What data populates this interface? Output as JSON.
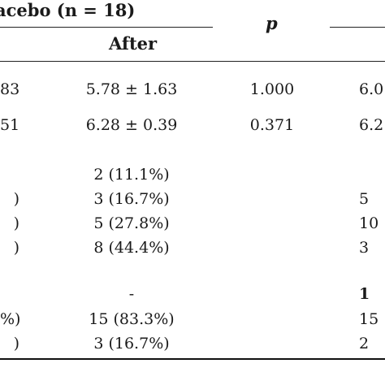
{
  "header": {
    "group_label": "acebo (n = 18)",
    "p_label": "p",
    "after_label": "After"
  },
  "rows": [
    {
      "before": "83",
      "after": "5.78 ± 1.63",
      "p": "1.000",
      "next": "6.0"
    },
    {
      "before": "51",
      "after": "6.28 ± 0.39",
      "p": "0.371",
      "next": "6.2"
    },
    {
      "before": "",
      "after": "2 (11.1%)",
      "p": "",
      "next": ""
    },
    {
      "before": ")",
      "after": "3 (16.7%)",
      "p": "",
      "next": "5"
    },
    {
      "before": ")",
      "after": "5 (27.8%)",
      "p": "",
      "next": "10"
    },
    {
      "before": ")",
      "after": "8 (44.4%)",
      "p": "",
      "next": "3"
    },
    {
      "before": "",
      "after": "-",
      "p": "",
      "next": "1"
    },
    {
      "before": "%)",
      "after": "15 (83.3%)",
      "p": "",
      "next": "15"
    },
    {
      "before": ")",
      "after": "3 (16.7%)",
      "p": "",
      "next": "2"
    }
  ]
}
